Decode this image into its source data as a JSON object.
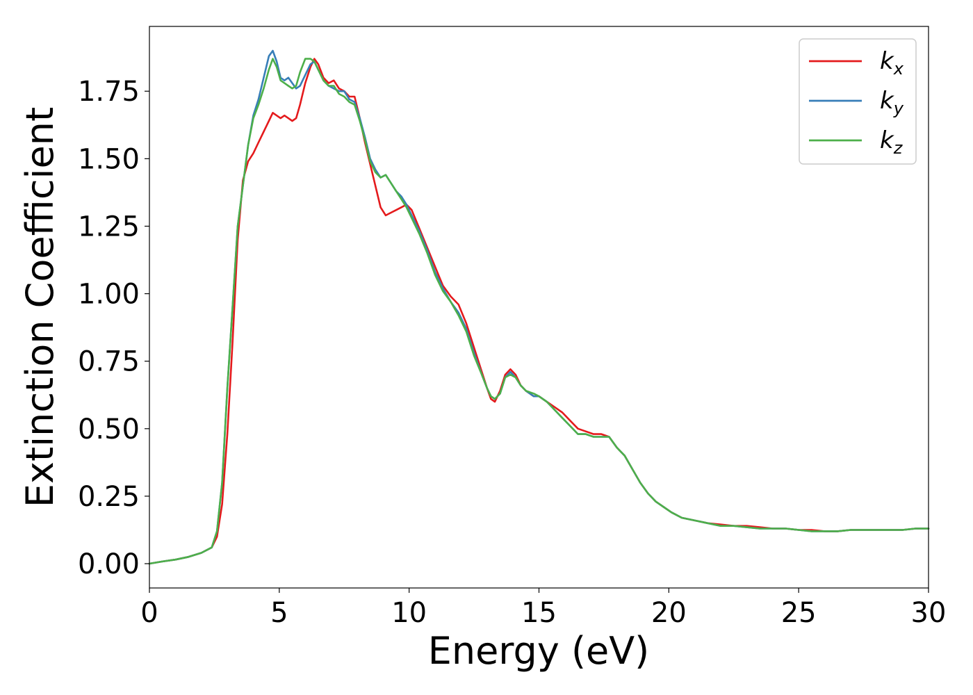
{
  "chart_data": {
    "type": "line",
    "title": "",
    "xlabel": "Energy (eV)",
    "ylabel": "Extinction Coefficient",
    "xlim": [
      0,
      30
    ],
    "ylim": [
      -0.09,
      1.99
    ],
    "xticks": [
      0,
      5,
      10,
      15,
      20,
      25,
      30
    ],
    "xtick_labels": [
      "0",
      "5",
      "10",
      "15",
      "20",
      "25",
      "30"
    ],
    "yticks": [
      0.0,
      0.25,
      0.5,
      0.75,
      1.0,
      1.25,
      1.5,
      1.75
    ],
    "ytick_labels": [
      "0.00",
      "0.25",
      "0.50",
      "0.75",
      "1.00",
      "1.25",
      "1.50",
      "1.75"
    ],
    "grid": false,
    "legend": {
      "placement": "top-right"
    },
    "series": [
      {
        "name": "k_x",
        "legend_base": "k",
        "legend_sub": "x",
        "color": "#e41a1c",
        "x": [
          0,
          0.5,
          1,
          1.5,
          2,
          2.4,
          2.6,
          2.8,
          3,
          3.2,
          3.4,
          3.6,
          3.8,
          4,
          4.2,
          4.4,
          4.6,
          4.75,
          4.9,
          5.05,
          5.2,
          5.35,
          5.5,
          5.65,
          5.8,
          6,
          6.2,
          6.35,
          6.5,
          6.7,
          6.9,
          7.1,
          7.3,
          7.5,
          7.7,
          7.9,
          8.1,
          8.3,
          8.5,
          8.7,
          8.9,
          9.1,
          9.3,
          9.5,
          9.7,
          9.9,
          10.1,
          10.4,
          10.7,
          11,
          11.3,
          11.6,
          11.9,
          12.2,
          12.5,
          12.8,
          13,
          13.15,
          13.3,
          13.5,
          13.7,
          13.9,
          14.1,
          14.3,
          14.5,
          14.8,
          15,
          15.3,
          15.6,
          15.9,
          16.2,
          16.5,
          16.8,
          17.1,
          17.4,
          17.7,
          18,
          18.3,
          18.6,
          18.9,
          19.2,
          19.5,
          19.8,
          20.1,
          20.5,
          21,
          21.5,
          22,
          22.5,
          23,
          23.5,
          24,
          24.5,
          25,
          25.5,
          26,
          26.5,
          27,
          27.5,
          28,
          28.5,
          29,
          29.5,
          30
        ],
        "y": [
          0,
          0.008,
          0.015,
          0.025,
          0.04,
          0.06,
          0.1,
          0.22,
          0.48,
          0.82,
          1.2,
          1.42,
          1.49,
          1.52,
          1.56,
          1.6,
          1.64,
          1.67,
          1.66,
          1.65,
          1.66,
          1.65,
          1.64,
          1.65,
          1.7,
          1.78,
          1.84,
          1.87,
          1.85,
          1.8,
          1.78,
          1.79,
          1.76,
          1.75,
          1.73,
          1.73,
          1.65,
          1.56,
          1.48,
          1.4,
          1.32,
          1.29,
          1.3,
          1.31,
          1.32,
          1.33,
          1.31,
          1.24,
          1.17,
          1.1,
          1.03,
          0.99,
          0.96,
          0.89,
          0.8,
          0.71,
          0.65,
          0.61,
          0.6,
          0.64,
          0.7,
          0.72,
          0.7,
          0.66,
          0.64,
          0.62,
          0.62,
          0.6,
          0.58,
          0.56,
          0.53,
          0.5,
          0.49,
          0.48,
          0.48,
          0.47,
          0.43,
          0.4,
          0.35,
          0.3,
          0.26,
          0.23,
          0.21,
          0.19,
          0.17,
          0.16,
          0.15,
          0.145,
          0.14,
          0.14,
          0.135,
          0.13,
          0.13,
          0.125,
          0.125,
          0.12,
          0.12,
          0.125,
          0.125,
          0.125,
          0.125,
          0.125,
          0.13,
          0.13
        ]
      },
      {
        "name": "k_y",
        "legend_base": "k",
        "legend_sub": "y",
        "color": "#377eb8",
        "x": [
          0,
          0.5,
          1,
          1.5,
          2,
          2.4,
          2.6,
          2.8,
          3,
          3.2,
          3.4,
          3.6,
          3.8,
          4,
          4.2,
          4.4,
          4.6,
          4.75,
          4.9,
          5.05,
          5.2,
          5.35,
          5.5,
          5.65,
          5.8,
          6,
          6.2,
          6.35,
          6.5,
          6.7,
          6.9,
          7.1,
          7.3,
          7.5,
          7.7,
          7.9,
          8.1,
          8.3,
          8.5,
          8.7,
          8.9,
          9.1,
          9.3,
          9.5,
          9.7,
          9.9,
          10.1,
          10.4,
          10.7,
          11,
          11.3,
          11.6,
          11.9,
          12.2,
          12.5,
          12.8,
          13,
          13.15,
          13.3,
          13.5,
          13.7,
          13.9,
          14.1,
          14.3,
          14.5,
          14.8,
          15,
          15.3,
          15.6,
          15.9,
          16.2,
          16.5,
          16.8,
          17.1,
          17.4,
          17.7,
          18,
          18.3,
          18.6,
          18.9,
          19.2,
          19.5,
          19.8,
          20.1,
          20.5,
          21,
          21.5,
          22,
          22.5,
          23,
          23.5,
          24,
          24.5,
          25,
          25.5,
          26,
          26.5,
          27,
          27.5,
          28,
          28.5,
          29,
          29.5,
          30
        ],
        "y": [
          0,
          0.008,
          0.015,
          0.025,
          0.04,
          0.06,
          0.12,
          0.3,
          0.65,
          0.95,
          1.25,
          1.4,
          1.55,
          1.66,
          1.72,
          1.8,
          1.88,
          1.9,
          1.86,
          1.8,
          1.79,
          1.8,
          1.78,
          1.76,
          1.77,
          1.81,
          1.85,
          1.86,
          1.83,
          1.79,
          1.77,
          1.76,
          1.75,
          1.75,
          1.72,
          1.71,
          1.65,
          1.58,
          1.5,
          1.46,
          1.43,
          1.44,
          1.41,
          1.38,
          1.36,
          1.33,
          1.29,
          1.23,
          1.16,
          1.08,
          1.02,
          0.97,
          0.93,
          0.87,
          0.78,
          0.7,
          0.65,
          0.62,
          0.61,
          0.63,
          0.69,
          0.71,
          0.69,
          0.66,
          0.64,
          0.62,
          0.62,
          0.6,
          0.57,
          0.54,
          0.51,
          0.48,
          0.48,
          0.47,
          0.47,
          0.47,
          0.43,
          0.4,
          0.35,
          0.3,
          0.26,
          0.23,
          0.21,
          0.19,
          0.17,
          0.16,
          0.15,
          0.14,
          0.14,
          0.135,
          0.13,
          0.13,
          0.13,
          0.125,
          0.12,
          0.12,
          0.12,
          0.125,
          0.125,
          0.125,
          0.125,
          0.125,
          0.13,
          0.13
        ]
      },
      {
        "name": "k_z",
        "legend_base": "k",
        "legend_sub": "z",
        "color": "#4daf4a",
        "x": [
          0,
          0.5,
          1,
          1.5,
          2,
          2.4,
          2.6,
          2.8,
          3,
          3.2,
          3.4,
          3.6,
          3.8,
          4,
          4.2,
          4.4,
          4.6,
          4.75,
          4.9,
          5.05,
          5.2,
          5.35,
          5.5,
          5.65,
          5.8,
          6,
          6.2,
          6.35,
          6.5,
          6.7,
          6.9,
          7.1,
          7.3,
          7.5,
          7.7,
          7.9,
          8.1,
          8.3,
          8.5,
          8.7,
          8.9,
          9.1,
          9.3,
          9.5,
          9.7,
          9.9,
          10.1,
          10.4,
          10.7,
          11,
          11.3,
          11.6,
          11.9,
          12.2,
          12.5,
          12.8,
          13,
          13.15,
          13.3,
          13.5,
          13.7,
          13.9,
          14.1,
          14.3,
          14.5,
          14.8,
          15,
          15.3,
          15.6,
          15.9,
          16.2,
          16.5,
          16.8,
          17.1,
          17.4,
          17.7,
          18,
          18.3,
          18.6,
          18.9,
          19.2,
          19.5,
          19.8,
          20.1,
          20.5,
          21,
          21.5,
          22,
          22.5,
          23,
          23.5,
          24,
          24.5,
          25,
          25.5,
          26,
          26.5,
          27,
          27.5,
          28,
          28.5,
          29,
          29.5,
          30
        ],
        "y": [
          0,
          0.008,
          0.015,
          0.025,
          0.04,
          0.06,
          0.12,
          0.3,
          0.65,
          0.95,
          1.25,
          1.4,
          1.55,
          1.65,
          1.7,
          1.76,
          1.83,
          1.87,
          1.84,
          1.79,
          1.78,
          1.77,
          1.76,
          1.77,
          1.82,
          1.87,
          1.87,
          1.86,
          1.83,
          1.79,
          1.77,
          1.77,
          1.74,
          1.73,
          1.71,
          1.7,
          1.64,
          1.57,
          1.49,
          1.45,
          1.43,
          1.44,
          1.41,
          1.38,
          1.35,
          1.32,
          1.28,
          1.22,
          1.15,
          1.07,
          1.01,
          0.97,
          0.92,
          0.86,
          0.77,
          0.7,
          0.65,
          0.62,
          0.61,
          0.63,
          0.69,
          0.7,
          0.69,
          0.66,
          0.64,
          0.63,
          0.62,
          0.6,
          0.57,
          0.54,
          0.51,
          0.48,
          0.48,
          0.47,
          0.47,
          0.47,
          0.43,
          0.4,
          0.35,
          0.3,
          0.26,
          0.23,
          0.21,
          0.19,
          0.17,
          0.16,
          0.15,
          0.14,
          0.14,
          0.135,
          0.13,
          0.13,
          0.13,
          0.125,
          0.12,
          0.12,
          0.12,
          0.125,
          0.125,
          0.125,
          0.125,
          0.125,
          0.13,
          0.13
        ]
      }
    ]
  }
}
